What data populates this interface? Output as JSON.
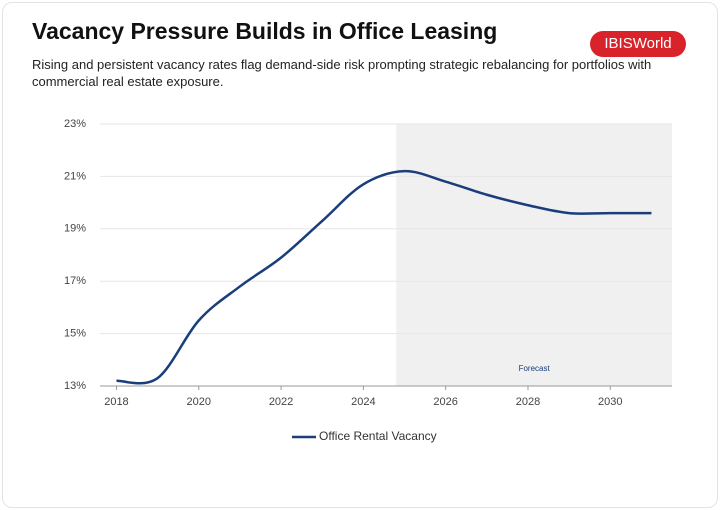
{
  "chart_data": {
    "type": "line",
    "title": "Vacancy Pressure Builds in Office Leasing",
    "subtitle": "Rising and persistent vacancy rates flag demand-side risk prompting strategic rebalancing for portfolios with commercial real estate exposure.",
    "logo": "IBISWorld",
    "x": [
      2018,
      2019,
      2020,
      2021,
      2022,
      2023,
      2024,
      2025,
      2026,
      2027,
      2028,
      2029,
      2030,
      2031
    ],
    "series": [
      {
        "name": "Office Rental Vacancy",
        "color": "#1a3d7c",
        "values": [
          13.2,
          13.3,
          15.5,
          16.8,
          17.9,
          19.3,
          20.7,
          21.2,
          20.8,
          20.3,
          19.9,
          19.6,
          19.6,
          19.6
        ]
      }
    ],
    "xlim": [
      2017.6,
      2031.5
    ],
    "xticks": [
      2018,
      2020,
      2022,
      2024,
      2026,
      2028,
      2030
    ],
    "ylim": [
      13,
      23
    ],
    "yticks": [
      {
        "value": 13,
        "label": "13%"
      },
      {
        "value": 15,
        "label": "15%"
      },
      {
        "value": 17,
        "label": "17%"
      },
      {
        "value": 19,
        "label": "19%"
      },
      {
        "value": 21,
        "label": "21%"
      },
      {
        "value": 23,
        "label": "23%"
      }
    ],
    "grid": true,
    "forecast_region": {
      "label": "Forecast",
      "start": 2024.8,
      "end": 2031.5
    },
    "legend": "bottom"
  }
}
